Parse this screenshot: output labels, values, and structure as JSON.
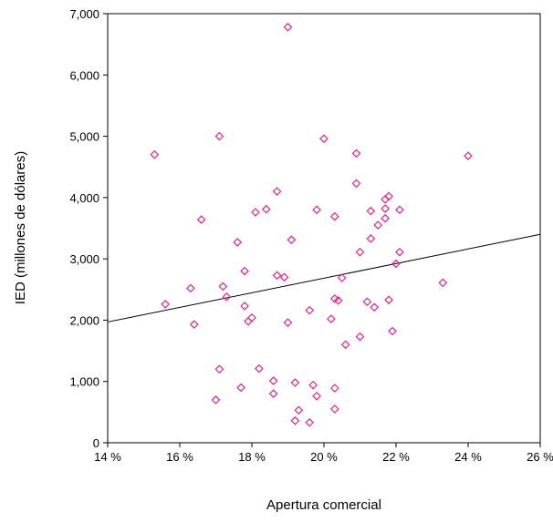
{
  "chart_data": {
    "type": "scatter",
    "title": "",
    "xlabel": "Apertura comercial",
    "ylabel": "IED (millones de dólares)",
    "xlim": [
      0.14,
      0.26
    ],
    "ylim": [
      0,
      7000
    ],
    "x_ticks": [
      0.14,
      0.16,
      0.18,
      0.2,
      0.22,
      0.24,
      0.26
    ],
    "x_tick_labels": [
      "14 %",
      "16 %",
      "18 %",
      "20 %",
      "22 %",
      "24 %",
      "26 %"
    ],
    "y_ticks": [
      0,
      1000,
      2000,
      3000,
      4000,
      5000,
      6000,
      7000
    ],
    "y_tick_labels": [
      "0",
      "1,000",
      "2,000",
      "3,000",
      "4,000",
      "5,000",
      "6,000",
      "7,000"
    ],
    "grid": false,
    "marker_color": "#e8208c",
    "line_color": "#000000",
    "trend_line": {
      "x": [
        0.14,
        0.26
      ],
      "y": [
        1970,
        3400
      ]
    },
    "points": [
      {
        "x": 0.153,
        "y": 4700
      },
      {
        "x": 0.156,
        "y": 2260
      },
      {
        "x": 0.163,
        "y": 2520
      },
      {
        "x": 0.164,
        "y": 1930
      },
      {
        "x": 0.166,
        "y": 3640
      },
      {
        "x": 0.17,
        "y": 700
      },
      {
        "x": 0.171,
        "y": 5000
      },
      {
        "x": 0.171,
        "y": 1200
      },
      {
        "x": 0.172,
        "y": 2550
      },
      {
        "x": 0.173,
        "y": 2380
      },
      {
        "x": 0.176,
        "y": 3270
      },
      {
        "x": 0.177,
        "y": 900
      },
      {
        "x": 0.178,
        "y": 2800
      },
      {
        "x": 0.178,
        "y": 2230
      },
      {
        "x": 0.179,
        "y": 1980
      },
      {
        "x": 0.18,
        "y": 2040
      },
      {
        "x": 0.181,
        "y": 3760
      },
      {
        "x": 0.182,
        "y": 1210
      },
      {
        "x": 0.184,
        "y": 3810
      },
      {
        "x": 0.186,
        "y": 1010
      },
      {
        "x": 0.186,
        "y": 800
      },
      {
        "x": 0.187,
        "y": 4100
      },
      {
        "x": 0.187,
        "y": 2730
      },
      {
        "x": 0.189,
        "y": 2700
      },
      {
        "x": 0.19,
        "y": 1960
      },
      {
        "x": 0.19,
        "y": 6780
      },
      {
        "x": 0.191,
        "y": 3310
      },
      {
        "x": 0.192,
        "y": 980
      },
      {
        "x": 0.192,
        "y": 360
      },
      {
        "x": 0.193,
        "y": 530
      },
      {
        "x": 0.196,
        "y": 2160
      },
      {
        "x": 0.196,
        "y": 330
      },
      {
        "x": 0.197,
        "y": 940
      },
      {
        "x": 0.198,
        "y": 3800
      },
      {
        "x": 0.198,
        "y": 760
      },
      {
        "x": 0.2,
        "y": 4960
      },
      {
        "x": 0.202,
        "y": 2020
      },
      {
        "x": 0.203,
        "y": 3690
      },
      {
        "x": 0.203,
        "y": 2350
      },
      {
        "x": 0.203,
        "y": 890
      },
      {
        "x": 0.203,
        "y": 550
      },
      {
        "x": 0.204,
        "y": 2320
      },
      {
        "x": 0.205,
        "y": 2690
      },
      {
        "x": 0.206,
        "y": 1600
      },
      {
        "x": 0.209,
        "y": 4720
      },
      {
        "x": 0.209,
        "y": 4230
      },
      {
        "x": 0.21,
        "y": 3110
      },
      {
        "x": 0.21,
        "y": 1730
      },
      {
        "x": 0.212,
        "y": 2300
      },
      {
        "x": 0.213,
        "y": 3780
      },
      {
        "x": 0.213,
        "y": 3330
      },
      {
        "x": 0.214,
        "y": 2210
      },
      {
        "x": 0.215,
        "y": 3550
      },
      {
        "x": 0.217,
        "y": 3660
      },
      {
        "x": 0.217,
        "y": 3820
      },
      {
        "x": 0.217,
        "y": 3970
      },
      {
        "x": 0.218,
        "y": 4020
      },
      {
        "x": 0.218,
        "y": 2330
      },
      {
        "x": 0.219,
        "y": 1820
      },
      {
        "x": 0.22,
        "y": 2920
      },
      {
        "x": 0.221,
        "y": 3800
      },
      {
        "x": 0.221,
        "y": 3110
      },
      {
        "x": 0.233,
        "y": 2610
      },
      {
        "x": 0.24,
        "y": 4680
      }
    ]
  }
}
